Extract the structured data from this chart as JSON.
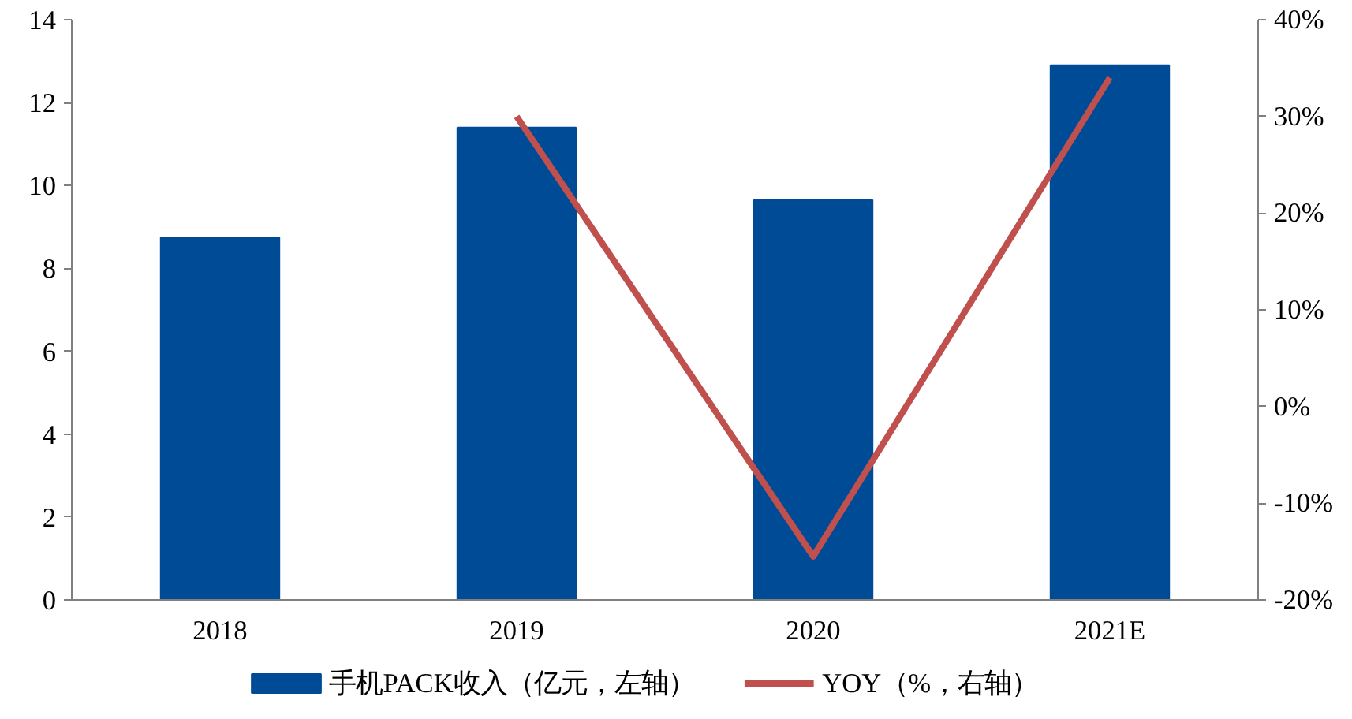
{
  "chart_data": {
    "type": "bar",
    "categories": [
      "2018",
      "2019",
      "2020",
      "2021E"
    ],
    "series": [
      {
        "name": "手机PACK收入（亿元，左轴）",
        "color": "#004b96",
        "values": [
          8.75,
          11.4,
          9.65,
          12.9
        ]
      },
      {
        "name": "YOY（%，右轴）",
        "type": "line",
        "axis": "y2",
        "color": "#c0504d",
        "values": [
          null,
          30,
          -15.5,
          34
        ]
      }
    ],
    "ylim": [
      0,
      14
    ],
    "yticks": [
      0,
      2,
      4,
      6,
      8,
      10,
      12,
      14
    ],
    "y2lim": [
      -20,
      40
    ],
    "y2ticks": [
      {
        "value": -20,
        "label": "-20%"
      },
      {
        "value": -10,
        "label": "-10%"
      },
      {
        "value": 0,
        "label": "0%"
      },
      {
        "value": 10,
        "label": "10%"
      },
      {
        "value": 20,
        "label": "20%"
      },
      {
        "value": 30,
        "label": "30%"
      },
      {
        "value": 40,
        "label": "40%"
      }
    ],
    "grid": false,
    "legend": "bottom",
    "marker": "none",
    "line_style": "solid"
  }
}
